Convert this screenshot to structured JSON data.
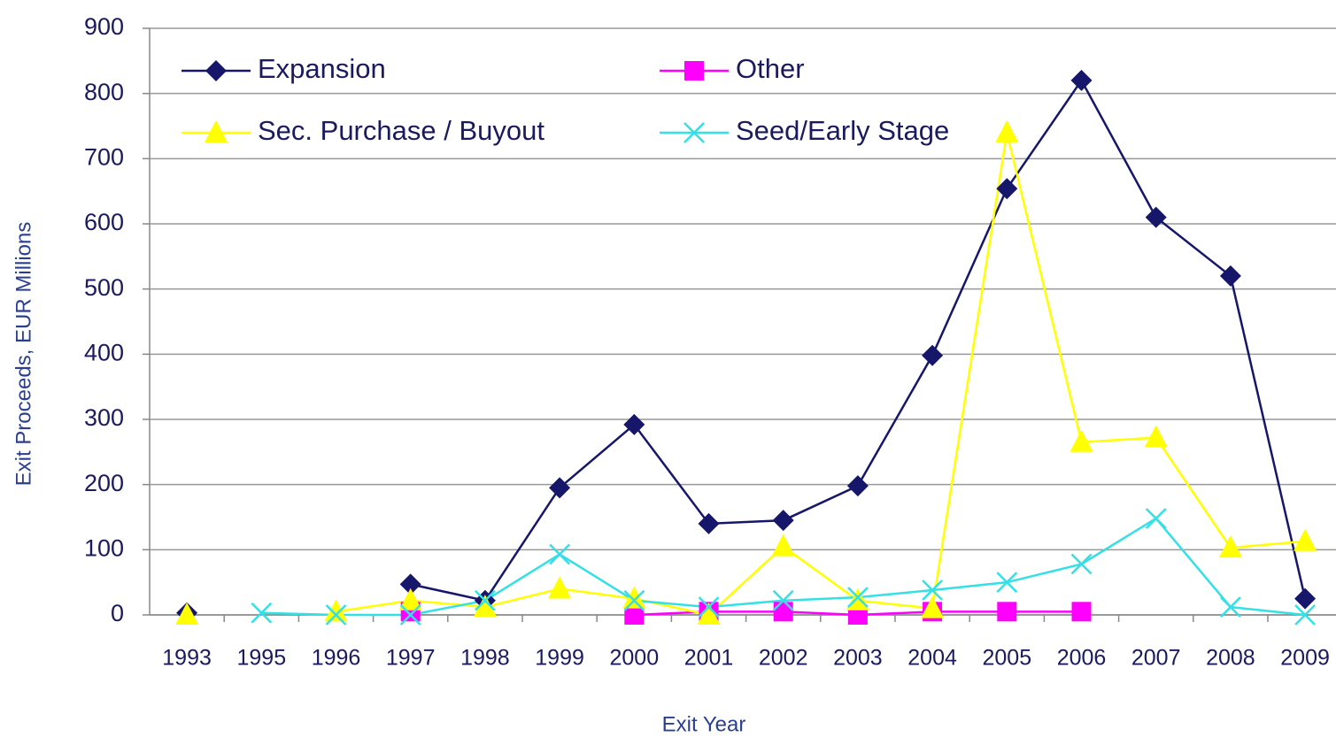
{
  "chart_data": {
    "type": "line",
    "x_label": "Exit Year",
    "y_label": "Exit Proceeds, EUR Millions",
    "categories": [
      "1993",
      "1995",
      "1996",
      "1997",
      "1998",
      "1999",
      "2000",
      "2001",
      "2002",
      "2003",
      "2004",
      "2005",
      "2006",
      "2007",
      "2008",
      "2009"
    ],
    "series": [
      {
        "name": "Expansion",
        "color": "#16166a",
        "marker": "diamond",
        "values": [
          3,
          null,
          null,
          47,
          22,
          195,
          292,
          140,
          145,
          198,
          398,
          654,
          820,
          610,
          520,
          25
        ]
      },
      {
        "name": "Other",
        "color": "#ff00ff",
        "marker": "square",
        "values": [
          null,
          null,
          null,
          5,
          null,
          null,
          0,
          5,
          5,
          0,
          5,
          5,
          5,
          null,
          null,
          null
        ]
      },
      {
        "name": "Sec. Purchase / Buyout",
        "color": "#ffff00",
        "marker": "triangle",
        "values": [
          0,
          null,
          5,
          22,
          12,
          40,
          25,
          0,
          105,
          22,
          10,
          740,
          265,
          272,
          103,
          113
        ]
      },
      {
        "name": "Seed/Early Stage",
        "color": "#33e0e6",
        "marker": "x",
        "values": [
          null,
          3,
          0,
          0,
          22,
          93,
          22,
          12,
          22,
          27,
          38,
          50,
          78,
          148,
          12,
          0
        ]
      }
    ],
    "ylim": [
      0,
      900
    ],
    "yticks": [
      0,
      100,
      200,
      300,
      400,
      500,
      600,
      700,
      800,
      900
    ],
    "grid": true
  }
}
